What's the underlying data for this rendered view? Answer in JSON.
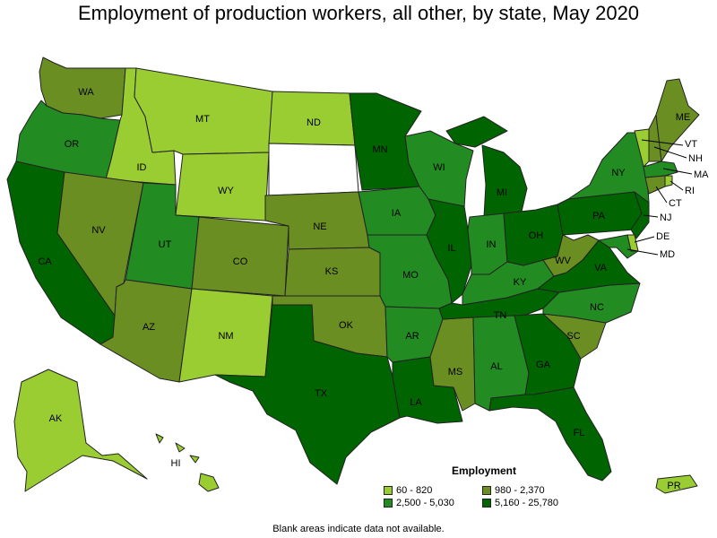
{
  "title": "Employment of production workers, all other, by state, May 2020",
  "colors": {
    "c1": "#9acd32",
    "c2": "#6b8e23",
    "c3": "#228b22",
    "c4": "#006400",
    "border": "#222222",
    "na": "#ffffff"
  },
  "legend": {
    "title": "Employment",
    "items": [
      {
        "label": "60 - 820",
        "class": "c1"
      },
      {
        "label": "980 - 2,370",
        "class": "c2"
      },
      {
        "label": "2,500 - 5,030",
        "class": "c3"
      },
      {
        "label": "5,160 - 25,780",
        "class": "c4"
      }
    ]
  },
  "footnote": "Blank areas indicate data not available.",
  "states": {
    "WA": "c2",
    "OR": "c3",
    "CA": "c4",
    "ID": "c1",
    "NV": "c2",
    "MT": "c1",
    "WY": "c1",
    "UT": "c3",
    "AZ": "c2",
    "CO": "c2",
    "NM": "c1",
    "ND": "c1",
    "SD": "na",
    "NE": "c2",
    "KS": "c2",
    "OK": "c2",
    "TX": "c4",
    "MN": "c4",
    "IA": "c3",
    "MO": "c3",
    "AR": "c3",
    "LA": "c4",
    "WI": "c3",
    "IL": "c4",
    "MS": "c2",
    "MI": "c4",
    "IN": "c3",
    "KY": "c3",
    "TN": "c4",
    "AL": "c3",
    "OH": "c4",
    "GA": "c4",
    "FL": "c4",
    "SC": "c2",
    "NC": "c3",
    "VA": "c4",
    "WV": "c2",
    "PA": "c4",
    "NY": "c3",
    "VT": "c1",
    "NH": "c2",
    "ME": "c2",
    "MA": "c3",
    "RI": "c1",
    "CT": "c2",
    "NJ": "c4",
    "DE": "c1",
    "MD": "c3",
    "AK": "c1",
    "HI": "c1",
    "PR": "c1"
  },
  "labels": {
    "WA": "WA",
    "OR": "OR",
    "CA": "CA",
    "ID": "ID",
    "NV": "NV",
    "MT": "MT",
    "WY": "WY",
    "UT": "UT",
    "AZ": "AZ",
    "CO": "CO",
    "NM": "NM",
    "ND": "ND",
    "NE": "NE",
    "KS": "KS",
    "OK": "OK",
    "TX": "TX",
    "MN": "MN",
    "IA": "IA",
    "MO": "MO",
    "AR": "AR",
    "LA": "LA",
    "WI": "WI",
    "IL": "IL",
    "MS": "MS",
    "MI": "MI",
    "IN": "IN",
    "KY": "KY",
    "TN": "TN",
    "AL": "AL",
    "OH": "OH",
    "GA": "GA",
    "FL": "FL",
    "SC": "SC",
    "NC": "NC",
    "VA": "VA",
    "WV": "WV",
    "PA": "PA",
    "NY": "NY",
    "VT": "VT",
    "NH": "NH",
    "ME": "ME",
    "MA": "MA",
    "RI": "RI",
    "CT": "CT",
    "NJ": "NJ",
    "DE": "DE",
    "MD": "MD",
    "AK": "AK",
    "HI": "HI",
    "PR": "PR"
  }
}
